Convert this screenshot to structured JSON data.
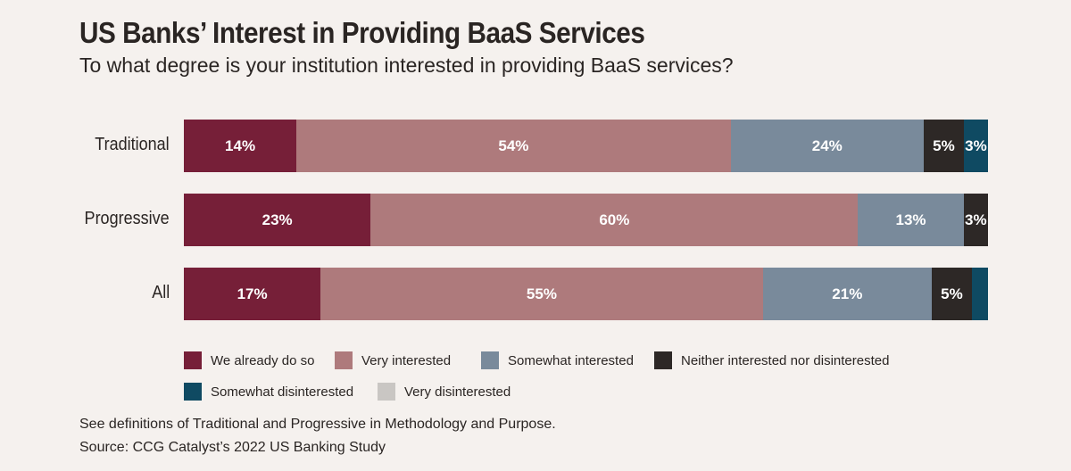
{
  "chart_data": {
    "type": "bar",
    "orientation": "horizontal-stacked-100",
    "title": "US Banks’ Interest in Providing BaaS Services",
    "subtitle": "To what degree is your institution interested in providing BaaS services?",
    "categories": [
      "Traditional",
      "Progressive",
      "All"
    ],
    "series": [
      {
        "name": "We already do so",
        "color": "#761f38",
        "values": [
          14,
          23,
          17
        ]
      },
      {
        "name": "Very interested",
        "color": "#ae7a7c",
        "values": [
          54,
          60,
          55
        ]
      },
      {
        "name": "Somewhat interested",
        "color": "#798a9b",
        "values": [
          24,
          13,
          21
        ]
      },
      {
        "name": "Neither interested nor disinterested",
        "color": "#2d2826",
        "values": [
          5,
          3,
          5
        ]
      },
      {
        "name": "Somewhat disinterested",
        "color": "#0f4a62",
        "values": [
          3,
          0,
          2
        ]
      },
      {
        "name": "Very disinterested",
        "color": "#c9c6c3",
        "values": [
          0,
          0,
          0
        ]
      }
    ],
    "hidden_labels": [
      [
        false,
        false,
        false,
        false,
        false,
        false
      ],
      [
        false,
        false,
        false,
        false,
        false,
        false
      ],
      [
        false,
        false,
        false,
        false,
        true,
        false
      ]
    ]
  },
  "notes": {
    "definitions": "See definitions of Traditional and Progressive in Methodology and Purpose.",
    "source": "Source: CCG Catalyst’s 2022 US Banking Study"
  }
}
